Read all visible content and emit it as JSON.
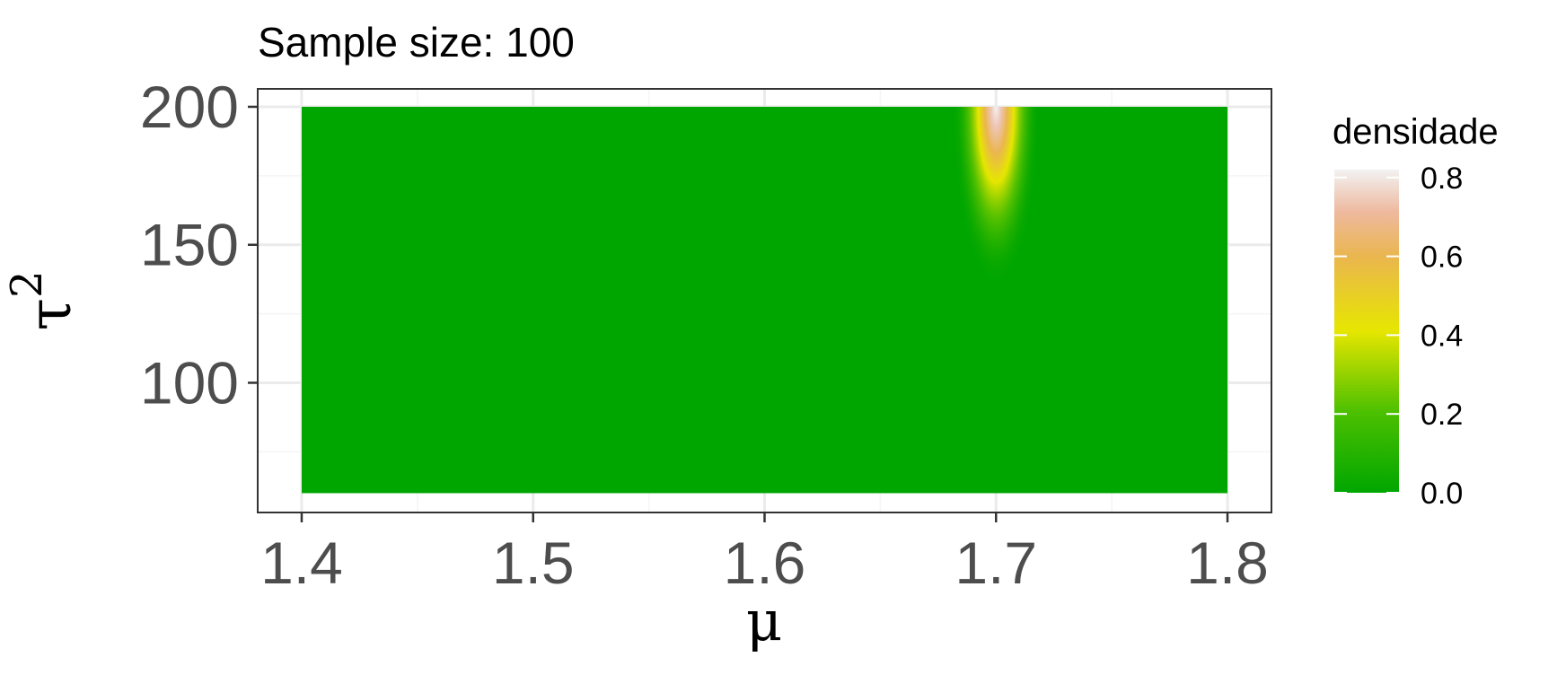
{
  "chart_data": {
    "type": "heatmap",
    "title": "Sample size: 100",
    "xlabel": "μ",
    "ylabel": "τ",
    "ylabel_superscript": "2",
    "x_range": [
      1.4,
      1.8
    ],
    "y_range": [
      60,
      200
    ],
    "xlim": [
      1.381,
      1.819
    ],
    "ylim": [
      53,
      206.5
    ],
    "x_ticks": [
      1.4,
      1.5,
      1.6,
      1.7,
      1.8
    ],
    "x_tick_labels": [
      "1.4",
      "1.5",
      "1.6",
      "1.7",
      "1.8"
    ],
    "y_ticks": [
      100,
      150,
      200
    ],
    "y_tick_labels": [
      "100",
      "150",
      "200"
    ],
    "grid": true,
    "peak": {
      "x": 1.7,
      "y": 200,
      "value": 0.82
    },
    "legend": {
      "title": "densidade",
      "position": "right",
      "breaks": [
        0.0,
        0.2,
        0.4,
        0.6,
        0.8
      ],
      "labels": [
        "0.0",
        "0.2",
        "0.4",
        "0.6",
        "0.8"
      ],
      "range": [
        0.0,
        0.82
      ]
    },
    "colors": {
      "gradient": [
        "#00A600",
        "#E6E600",
        "#EAB64E",
        "#EEB99F",
        "#F2F2F2"
      ],
      "panel_border": "#333333",
      "grid_major": "#EBEBEB",
      "grid_minor": "#F5F5F5",
      "tick_text": "#4D4D4D"
    }
  }
}
